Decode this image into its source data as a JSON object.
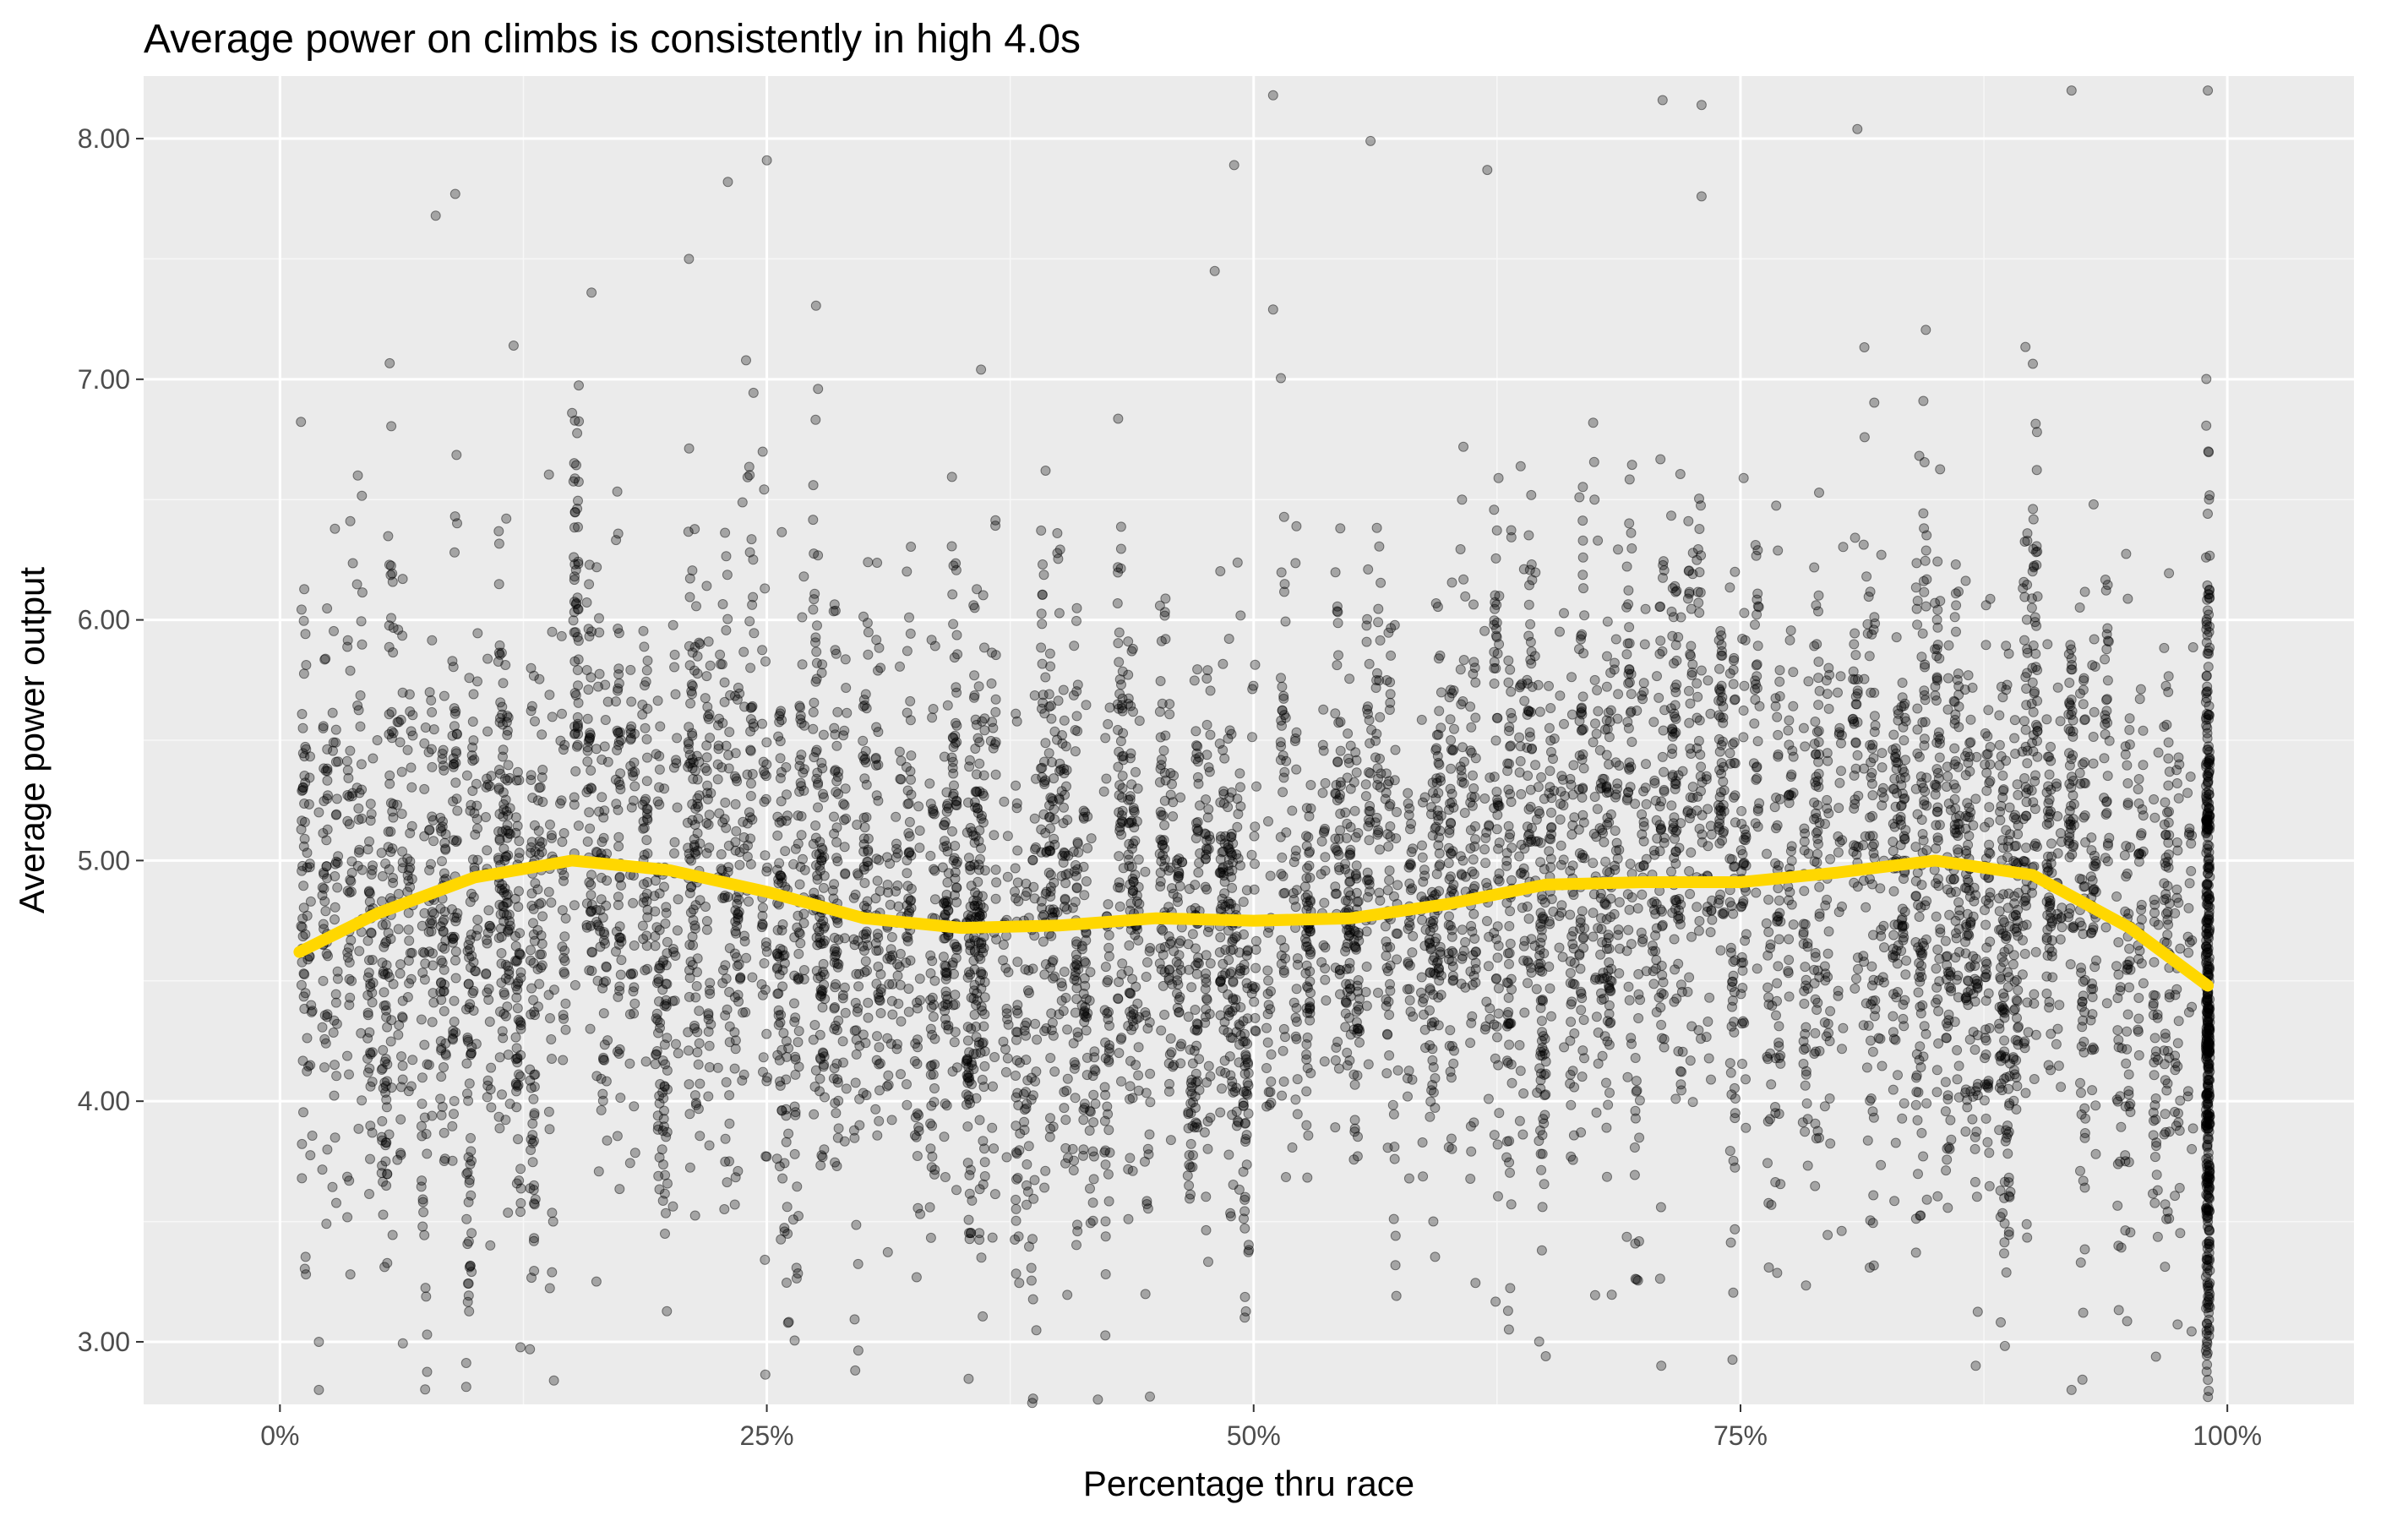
{
  "chart_data": {
    "type": "scatter",
    "title": "Average power on climbs is consistently in high 4.0s",
    "xlabel": "Percentage thru race",
    "ylabel": "Average power output",
    "xlim": [
      -0.07,
      1.065
    ],
    "ylim": [
      2.74,
      8.26
    ],
    "x_ticks": [
      0,
      0.25,
      0.5,
      0.75,
      1
    ],
    "x_tick_labels": [
      "0%",
      "25%",
      "50%",
      "75%",
      "100%"
    ],
    "y_ticks": [
      3,
      4,
      5,
      6,
      7,
      8
    ],
    "y_tick_labels": [
      "3.00",
      "4.00",
      "5.00",
      "6.00",
      "7.00",
      "8.00"
    ],
    "grid": true,
    "legend": "none",
    "colors": {
      "panel_background": "#EBEBEB",
      "grid_major": "#FFFFFF",
      "grid_minor": "#F7F7F7",
      "points": "#000000",
      "smooth_line": "#FFD700",
      "tick_label": "#4D4D4D"
    },
    "series": [
      {
        "type": "scatter",
        "point_alpha": 0.3,
        "n_points_approx": 9000,
        "sample_points": [
          [
            0.02,
            5.2
          ],
          [
            0.02,
            3.0
          ],
          [
            0.02,
            2.8
          ],
          [
            0.04,
            6.6
          ],
          [
            0.05,
            5.5
          ],
          [
            0.08,
            7.68
          ],
          [
            0.09,
            7.77
          ],
          [
            0.12,
            7.14
          ],
          [
            0.15,
            6.86
          ],
          [
            0.16,
            7.36
          ],
          [
            0.21,
            7.5
          ],
          [
            0.23,
            7.82
          ],
          [
            0.25,
            7.91
          ],
          [
            0.36,
            7.04
          ],
          [
            0.42,
            2.76
          ],
          [
            0.48,
            7.45
          ],
          [
            0.49,
            7.89
          ],
          [
            0.51,
            8.18
          ],
          [
            0.51,
            7.29
          ],
          [
            0.56,
            7.99
          ],
          [
            0.62,
            7.87
          ],
          [
            0.65,
            2.94
          ],
          [
            0.71,
            8.16
          ],
          [
            0.73,
            8.14
          ],
          [
            0.73,
            7.76
          ],
          [
            0.81,
            8.04
          ],
          [
            0.92,
            8.2
          ],
          [
            0.92,
            2.8
          ],
          [
            0.99,
            8.2
          ],
          [
            0.99,
            3.5
          ]
        ]
      },
      {
        "type": "line",
        "name": "smooth",
        "x": [
          0.01,
          0.05,
          0.1,
          0.15,
          0.2,
          0.25,
          0.3,
          0.35,
          0.4,
          0.45,
          0.5,
          0.55,
          0.6,
          0.65,
          0.7,
          0.75,
          0.8,
          0.85,
          0.9,
          0.95,
          0.99
        ],
        "values": [
          4.62,
          4.78,
          4.93,
          5.0,
          4.96,
          4.87,
          4.76,
          4.72,
          4.73,
          4.76,
          4.75,
          4.76,
          4.82,
          4.9,
          4.91,
          4.91,
          4.95,
          5.0,
          4.94,
          4.72,
          4.48
        ]
      }
    ]
  }
}
